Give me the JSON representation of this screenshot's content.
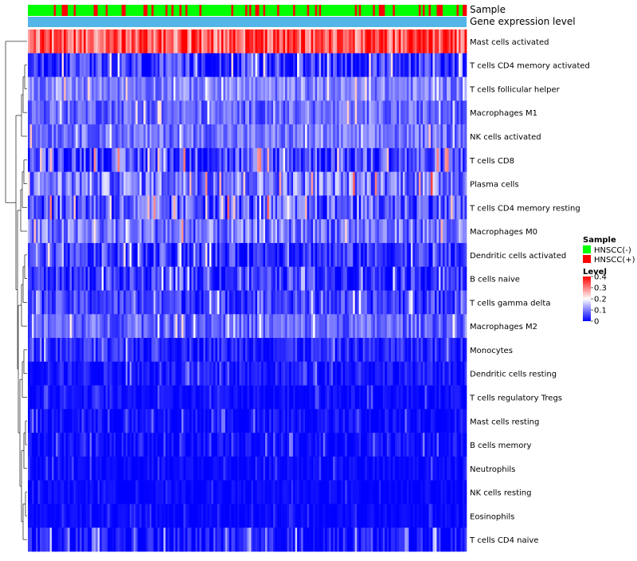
{
  "chart_data": {
    "type": "heatmap",
    "title": "",
    "annotation_labels": {
      "sample": "Sample",
      "gene_level": "Gene expression level"
    },
    "rows": [
      {
        "label": "Mast cells activated",
        "mean": 0.33,
        "spread": 0.09
      },
      {
        "label": "T cells CD4 memory activated",
        "mean": 0.04,
        "spread": 0.07
      },
      {
        "label": "T cells follicular helper",
        "mean": 0.1,
        "spread": 0.05
      },
      {
        "label": "Macrophages M1",
        "mean": 0.08,
        "spread": 0.05
      },
      {
        "label": "NK cells activated",
        "mean": 0.09,
        "spread": 0.05
      },
      {
        "label": "T cells CD8",
        "mean": 0.06,
        "spread": 0.08
      },
      {
        "label": "Plasma cells",
        "mean": 0.1,
        "spread": 0.08
      },
      {
        "label": "T cells CD4 memory resting",
        "mean": 0.07,
        "spread": 0.08
      },
      {
        "label": "Macrophages M0",
        "mean": 0.09,
        "spread": 0.07
      },
      {
        "label": "Dendritic cells activated",
        "mean": 0.04,
        "spread": 0.06
      },
      {
        "label": "B cells naive",
        "mean": 0.04,
        "spread": 0.05
      },
      {
        "label": "T cells gamma delta",
        "mean": 0.05,
        "spread": 0.05
      },
      {
        "label": "Macrophages M2",
        "mean": 0.08,
        "spread": 0.05
      },
      {
        "label": "Monocytes",
        "mean": 0.03,
        "spread": 0.04
      },
      {
        "label": "Dendritic cells resting",
        "mean": 0.02,
        "spread": 0.03
      },
      {
        "label": "T cells regulatory  Tregs",
        "mean": 0.01,
        "spread": 0.02
      },
      {
        "label": "Mast cells resting",
        "mean": 0.01,
        "spread": 0.03
      },
      {
        "label": "B cells memory",
        "mean": 0.01,
        "spread": 0.03
      },
      {
        "label": "Neutrophils",
        "mean": 0.005,
        "spread": 0.02
      },
      {
        "label": "NK cells resting",
        "mean": 0.005,
        "spread": 0.015
      },
      {
        "label": "Eosinophils",
        "mean": 0.003,
        "spread": 0.015
      },
      {
        "label": "T cells CD4 naive",
        "mean": 0.01,
        "spread": 0.05
      }
    ],
    "n_columns": 220,
    "color_scale": {
      "min": 0,
      "max": 0.4,
      "stops": [
        {
          "value": 0,
          "color": "#0000ff"
        },
        {
          "value": 0.2,
          "color": "#ffffff"
        },
        {
          "value": 0.4,
          "color": "#ff0000"
        }
      ]
    },
    "sample_groups": [
      {
        "name": "HNSCC(-)",
        "color": "#00ff00"
      },
      {
        "name": "HNSCC(+)",
        "color": "#ff0000"
      }
    ],
    "sample_positive_fraction": 0.22,
    "gene_level_color": "#54b6e8",
    "legends": {
      "sample": {
        "title": "Sample",
        "items": [
          "HNSCC(-)",
          "HNSCC(+)"
        ]
      },
      "level": {
        "title": "Level",
        "ticks": [
          0.4,
          0.3,
          0.2,
          0.1,
          0
        ],
        "tick_labels": [
          "0.4",
          "0.3",
          "0.2",
          "0.1",
          "0"
        ]
      }
    }
  }
}
